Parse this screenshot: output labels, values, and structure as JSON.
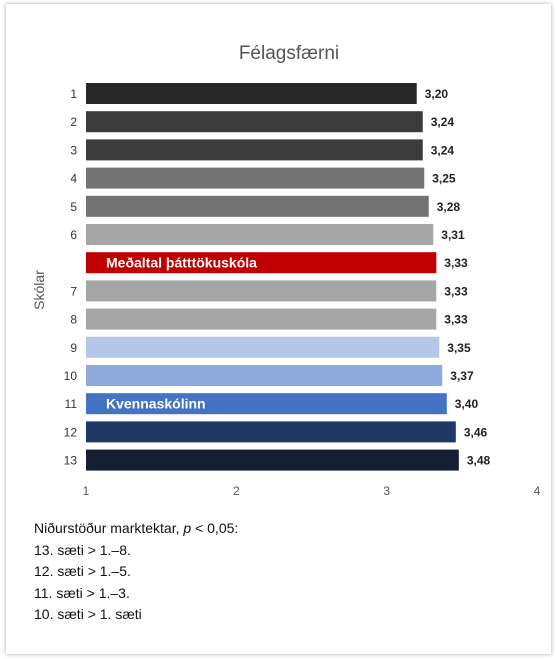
{
  "chart_data": {
    "type": "bar",
    "orientation": "horizontal",
    "title": "Félagsfærni",
    "ylabel": "Skólar",
    "xlabel": "",
    "xlim": [
      1,
      4
    ],
    "x_ticks": [
      "1",
      "2",
      "3",
      "4"
    ],
    "grid": false,
    "categories": [
      "1",
      "2",
      "3",
      "4",
      "5",
      "6",
      "",
      "7",
      "8",
      "9",
      "10",
      "11",
      "12",
      "13"
    ],
    "values": [
      3.2,
      3.24,
      3.24,
      3.25,
      3.28,
      3.31,
      3.33,
      3.33,
      3.33,
      3.35,
      3.37,
      3.4,
      3.46,
      3.48
    ],
    "value_labels": [
      "3,20",
      "3,24",
      "3,24",
      "3,25",
      "3,28",
      "3,31",
      "3,33",
      "3,33",
      "3,33",
      "3,35",
      "3,37",
      "3,40",
      "3,46",
      "3,48"
    ],
    "bar_labels": [
      "",
      "",
      "",
      "",
      "",
      "",
      "Meðaltal þátttökuskóla",
      "",
      "",
      "",
      "",
      "Kvennaskólinn",
      "",
      ""
    ],
    "colors": [
      "#262626",
      "#3b3b3b",
      "#3b3b3b",
      "#737373",
      "#737373",
      "#a6a6a6",
      "#c00000",
      "#a6a6a6",
      "#a6a6a6",
      "#b4c7e7",
      "#8eaadb",
      "#4472c4",
      "#203864",
      "#151e33"
    ]
  },
  "notes": {
    "heading_prefix": "Niðurstöður marktektar, ",
    "heading_p": "p",
    "heading_suffix": " < 0,05:",
    "lines": [
      "13. sæti > 1.–8.",
      "12. sæti > 1.–5.",
      "11. sæti > 1.–3.",
      "10. sæti > 1. sæti"
    ]
  }
}
